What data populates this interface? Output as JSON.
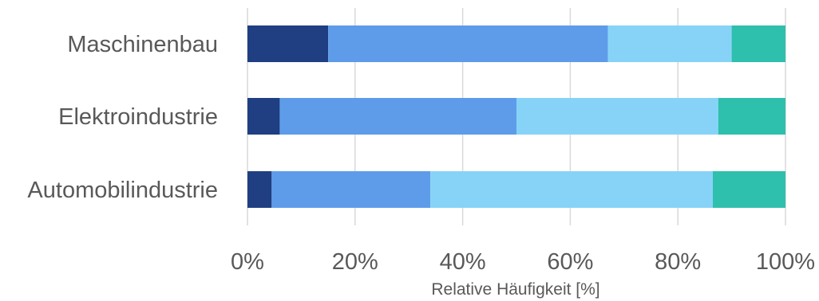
{
  "chart_data": {
    "type": "bar",
    "orientation": "horizontal",
    "stacked": true,
    "normalized_percent": true,
    "categories": [
      "Maschinenbau",
      "Elektroindustrie",
      "Automobilindustrie"
    ],
    "series": [
      {
        "color": "#1f3f82",
        "values": [
          15,
          6,
          4.5
        ]
      },
      {
        "color": "#5e9cea",
        "values": [
          52,
          44,
          29.5
        ]
      },
      {
        "color": "#87d3f8",
        "values": [
          23,
          37.5,
          52.5
        ]
      },
      {
        "color": "#2ebfad",
        "values": [
          10,
          12.5,
          13.5
        ]
      }
    ],
    "xlim": [
      0,
      100
    ],
    "xticks": [
      "0%",
      "20%",
      "40%",
      "60%",
      "80%",
      "100%"
    ],
    "xlabel": "Relative Häufigkeit [%]",
    "title": "",
    "grid": "vertical",
    "legend": "none"
  }
}
